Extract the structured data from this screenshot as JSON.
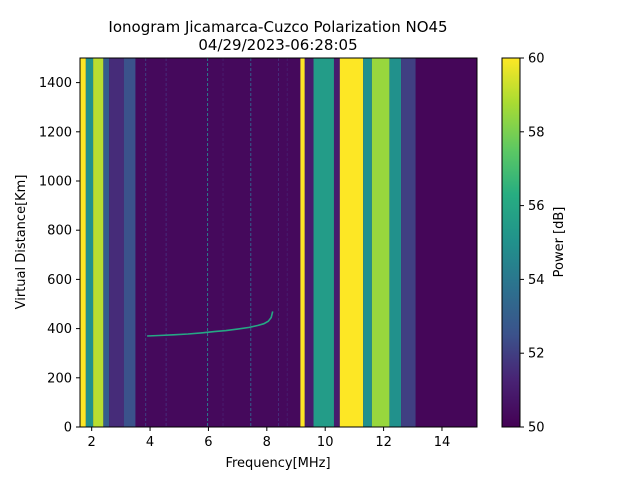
{
  "chart_data": {
    "type": "heatmap",
    "title": "Ionogram Jicamarca-Cuzco Polarization NO45",
    "subtitle": "04/29/2023-06:28:05",
    "xlabel": "Frequency[MHz]",
    "ylabel": "Virtual Distance[Km]",
    "xlim": [
      1.6,
      15.2
    ],
    "ylim": [
      0,
      1500
    ],
    "x_ticks": [
      2,
      4,
      6,
      8,
      10,
      12,
      14
    ],
    "y_ticks": [
      0,
      200,
      400,
      600,
      800,
      1000,
      1200,
      1400
    ],
    "grid": false,
    "colorbar": {
      "label": "Power [dB]",
      "range": [
        50,
        60
      ],
      "ticks": [
        50,
        52,
        54,
        56,
        58,
        60
      ],
      "colormap": "viridis"
    },
    "bands": [
      {
        "x_start": 1.6,
        "x_end": 1.8,
        "power": 60
      },
      {
        "x_start": 1.8,
        "x_end": 2.05,
        "power": 55
      },
      {
        "x_start": 2.05,
        "x_end": 2.4,
        "power": 59
      },
      {
        "x_start": 2.4,
        "x_end": 2.6,
        "power": 53
      },
      {
        "x_start": 2.6,
        "x_end": 3.1,
        "power": 51.5
      },
      {
        "x_start": 3.1,
        "x_end": 3.5,
        "power": 52.5
      },
      {
        "x_start": 3.5,
        "x_end": 9.15,
        "power": 50.3
      },
      {
        "x_start": 9.15,
        "x_end": 9.3,
        "power": 60
      },
      {
        "x_start": 9.3,
        "x_end": 9.6,
        "power": 51
      },
      {
        "x_start": 9.6,
        "x_end": 10.3,
        "power": 55.5
      },
      {
        "x_start": 10.3,
        "x_end": 10.5,
        "power": 51
      },
      {
        "x_start": 10.5,
        "x_end": 11.3,
        "power": 60
      },
      {
        "x_start": 11.3,
        "x_end": 11.6,
        "power": 55
      },
      {
        "x_start": 11.6,
        "x_end": 12.2,
        "power": 58.5
      },
      {
        "x_start": 12.2,
        "x_end": 12.6,
        "power": 55
      },
      {
        "x_start": 12.6,
        "x_end": 13.1,
        "power": 52
      },
      {
        "x_start": 13.1,
        "x_end": 15.2,
        "power": 50.2
      }
    ],
    "thin_lines": [
      {
        "x": 5.97,
        "power": 54
      },
      {
        "x": 7.45,
        "power": 53
      },
      {
        "x": 3.85,
        "power": 52
      },
      {
        "x": 4.55,
        "power": 51.5
      },
      {
        "x": 6.5,
        "power": 51
      },
      {
        "x": 8.4,
        "power": 51.5
      },
      {
        "x": 8.7,
        "power": 51
      }
    ],
    "trace": {
      "name": "",
      "power": 56,
      "x": [
        3.9,
        4.3,
        4.8,
        5.3,
        5.8,
        6.2,
        6.6,
        7.0,
        7.4,
        7.7,
        7.9,
        8.05,
        8.15,
        8.2
      ],
      "y": [
        370,
        372,
        375,
        378,
        383,
        388,
        392,
        398,
        405,
        413,
        420,
        430,
        445,
        470
      ]
    }
  }
}
